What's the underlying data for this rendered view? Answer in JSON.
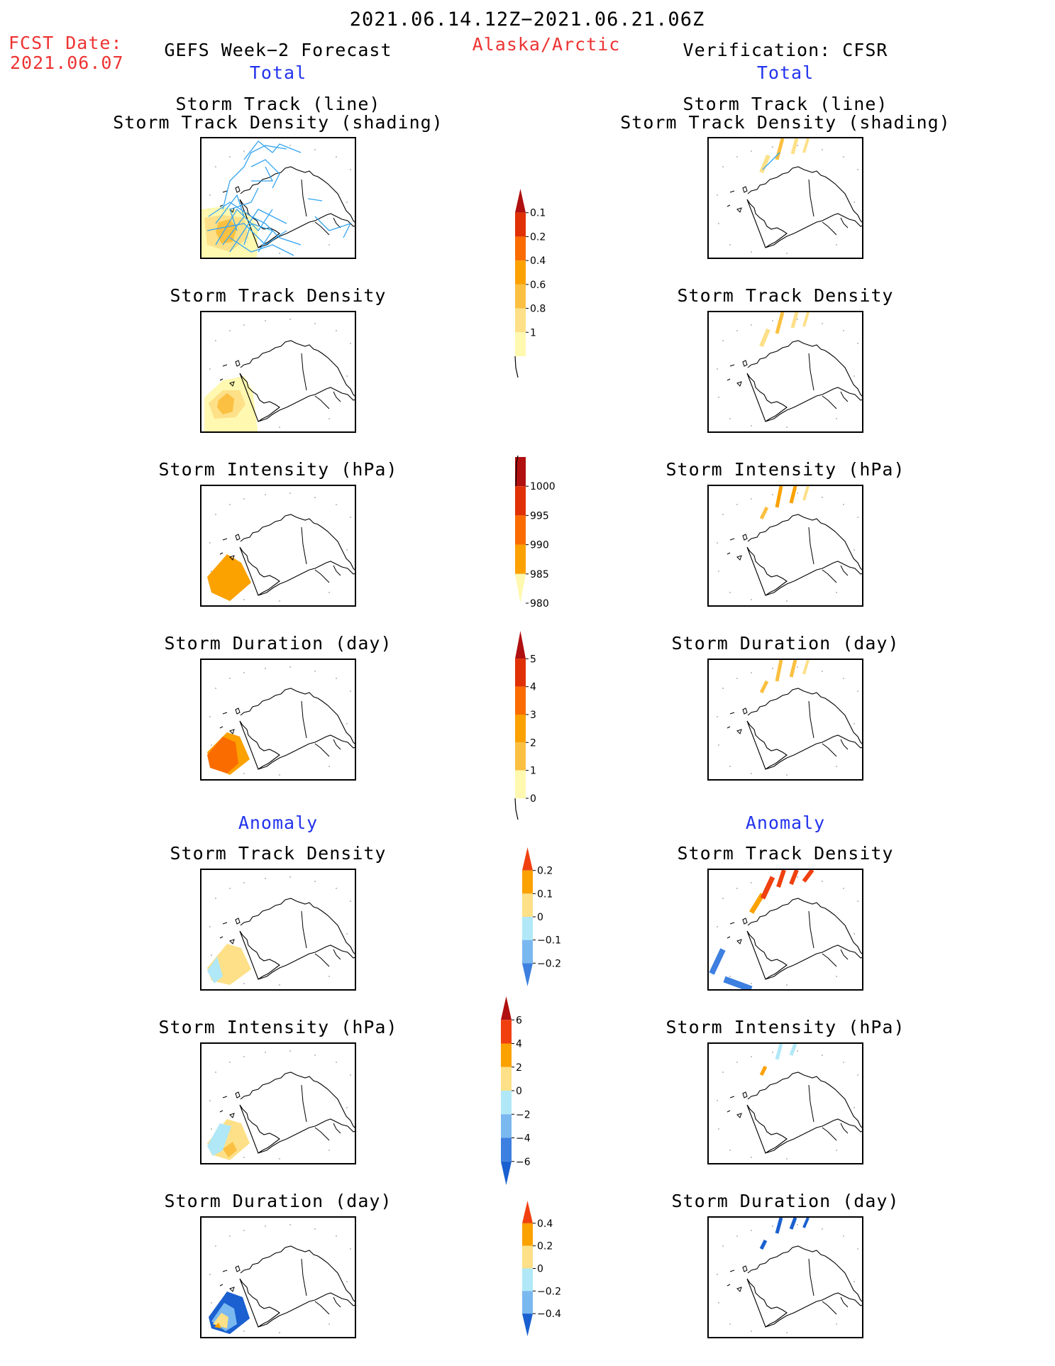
{
  "header": {
    "period": "2021.06.14.12Z−2021.06.21.06Z",
    "fcst_label": "FCST Date:",
    "fcst_date": "2021.06.07",
    "region": "Alaska/Arctic",
    "left_title": "GEFS Week−2 Forecast",
    "right_title": "Verification: CFSR"
  },
  "sections": {
    "total": "Total",
    "anomaly": "Anomaly"
  },
  "panel_titles": {
    "track_line": "Storm Track (line)",
    "track_shading": "Storm Track Density (shading)",
    "density": "Storm Track Density",
    "intensity": "Storm Intensity (hPa)",
    "duration": "Storm Duration (day)"
  },
  "colors": {
    "title_red": "#ee3333",
    "section_blue": "#2233ee",
    "track_line": "#33a4f0"
  },
  "chart_data": [
    {
      "type": "heatmap",
      "name": "total-density-colorbar",
      "levels": [
        "0.1",
        "0.2",
        "0.4",
        "0.6",
        "0.8",
        "1"
      ],
      "colors": [
        "#fff8b0",
        "#fde088",
        "#fbc041",
        "#fba100",
        "#fb6c00",
        "#e03005",
        "#b01010"
      ]
    },
    {
      "type": "heatmap",
      "name": "total-intensity-colorbar",
      "levels": [
        "1000",
        "995",
        "990",
        "985",
        "980"
      ],
      "colors": [
        "#fff8b0",
        "#fba100",
        "#fb6c00",
        "#e03005",
        "#b01010"
      ]
    },
    {
      "type": "heatmap",
      "name": "total-duration-colorbar",
      "levels": [
        "5",
        "4",
        "3",
        "2",
        "1",
        "0"
      ],
      "colors": [
        "#b01010",
        "#e03005",
        "#fb6c00",
        "#fba100",
        "#fbc041",
        "#fff8b0"
      ]
    },
    {
      "type": "heatmap",
      "name": "anomaly-density-colorbar",
      "levels": [
        "0.2",
        "0.1",
        "0",
        "−0.1",
        "−0.2"
      ],
      "colors": [
        "#f04010",
        "#fba100",
        "#fde088",
        "#b0e8f8",
        "#7ab8f0",
        "#3d80e0"
      ]
    },
    {
      "type": "heatmap",
      "name": "anomaly-intensity-colorbar",
      "levels": [
        "6",
        "4",
        "2",
        "0",
        "−2",
        "−4",
        "−6"
      ],
      "colors": [
        "#b01010",
        "#f04010",
        "#fba100",
        "#fde088",
        "#b0e8f8",
        "#7ab8f0",
        "#3d80e0",
        "#1a60d0"
      ]
    },
    {
      "type": "heatmap",
      "name": "anomaly-duration-colorbar",
      "levels": [
        "0.4",
        "0.2",
        "0",
        "−0.2",
        "−0.4"
      ],
      "colors": [
        "#f04010",
        "#fba100",
        "#fde088",
        "#b0e8f8",
        "#7ab8f0",
        "#1a60d0"
      ]
    }
  ]
}
